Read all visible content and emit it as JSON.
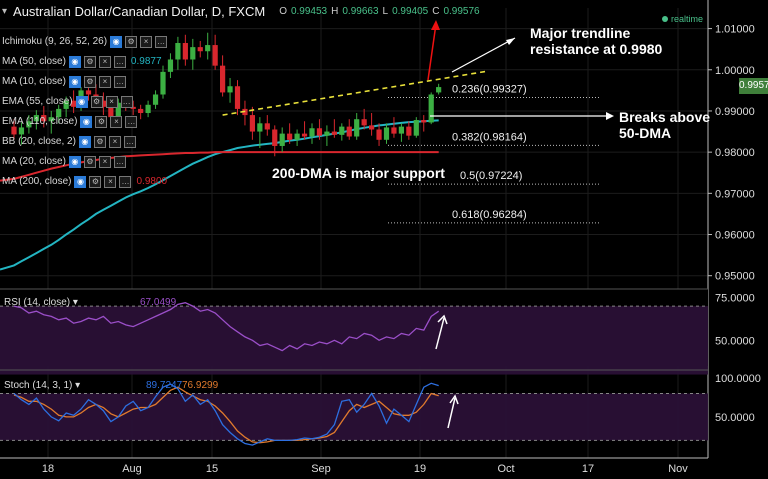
{
  "header": {
    "title": "Australian Dollar/Canadian Dollar, D, FXCM",
    "ohlc": {
      "o_label": "O",
      "o": "0.99453",
      "h_label": "H",
      "h": "0.99663",
      "l_label": "L",
      "l": "0.99405",
      "c_label": "C",
      "c": "0.99576"
    }
  },
  "realtime_label": "realtime",
  "indicators": [
    {
      "label": "Ichimoku (9, 26, 52, 26)",
      "value": ""
    },
    {
      "label": "MA (50, close)",
      "value": "0.9877"
    },
    {
      "label": "MA (10, close)",
      "value": ""
    },
    {
      "label": "EMA (55, close)",
      "value": ""
    },
    {
      "label": "EMA (110, close)",
      "value": ""
    },
    {
      "label": "BB (20, close, 2)",
      "value": ""
    },
    {
      "label": "MA (20, close)",
      "value": ""
    },
    {
      "label": "MA (200, close)",
      "value": "0.9800"
    }
  ],
  "current_price": "0.99576",
  "colors": {
    "up": "#3cb043",
    "down": "#d9272e",
    "ema": "#23b5c2",
    "dma200": "#d9272e",
    "trendline": "#e8e03a",
    "rsi": "#9b4fc9",
    "stoch_k": "#2d6fe0",
    "stoch_d": "#e07a2d",
    "panel": "#2a1036",
    "annot_red": "#e11",
    "badge": "#3f7f3a"
  },
  "annotations": {
    "trendline_note": "Major trendline resistance at 0.9980",
    "breaks_note": "Breaks above 50-DMA",
    "support_note": "200-DMA is major support"
  },
  "chart_data": [
    {
      "type": "candlestick",
      "title": "Australian Dollar/Canadian Dollar, D, FXCM",
      "ylim": [
        0.9475,
        1.015
      ],
      "yticks": [
        "1.01000",
        "1.00000",
        "0.99000",
        "0.98000",
        "0.97000",
        "0.96000",
        "0.95000"
      ],
      "x_labels": [
        "18",
        "Aug",
        "15",
        "Sep",
        "19",
        "Oct",
        "17",
        "Nov"
      ],
      "candles": [
        {
          "o": 0.9862,
          "h": 0.988,
          "l": 0.983,
          "c": 0.9843
        },
        {
          "o": 0.9843,
          "h": 0.9872,
          "l": 0.9818,
          "c": 0.986
        },
        {
          "o": 0.986,
          "h": 0.989,
          "l": 0.9845,
          "c": 0.9875
        },
        {
          "o": 0.9875,
          "h": 0.9902,
          "l": 0.9855,
          "c": 0.989
        },
        {
          "o": 0.989,
          "h": 0.9912,
          "l": 0.986,
          "c": 0.9875
        },
        {
          "o": 0.9875,
          "h": 0.99,
          "l": 0.9845,
          "c": 0.9885
        },
        {
          "o": 0.9885,
          "h": 0.9915,
          "l": 0.987,
          "c": 0.9905
        },
        {
          "o": 0.9905,
          "h": 0.9935,
          "l": 0.9885,
          "c": 0.9925
        },
        {
          "o": 0.9925,
          "h": 0.995,
          "l": 0.9895,
          "c": 0.991
        },
        {
          "o": 0.991,
          "h": 0.9958,
          "l": 0.99,
          "c": 0.995
        },
        {
          "o": 0.995,
          "h": 0.9975,
          "l": 0.9925,
          "c": 0.994
        },
        {
          "o": 0.994,
          "h": 0.9965,
          "l": 0.9915,
          "c": 0.9925
        },
        {
          "o": 0.9925,
          "h": 0.9945,
          "l": 0.989,
          "c": 0.991
        },
        {
          "o": 0.991,
          "h": 0.993,
          "l": 0.986,
          "c": 0.9885
        },
        {
          "o": 0.9885,
          "h": 0.993,
          "l": 0.988,
          "c": 0.992
        },
        {
          "o": 0.992,
          "h": 0.9935,
          "l": 0.99,
          "c": 0.991
        },
        {
          "o": 0.991,
          "h": 0.9925,
          "l": 0.989,
          "c": 0.9905
        },
        {
          "o": 0.9905,
          "h": 0.9915,
          "l": 0.988,
          "c": 0.9895
        },
        {
          "o": 0.9895,
          "h": 0.9925,
          "l": 0.9885,
          "c": 0.9915
        },
        {
          "o": 0.9915,
          "h": 0.995,
          "l": 0.9905,
          "c": 0.994
        },
        {
          "o": 0.994,
          "h": 1.001,
          "l": 0.993,
          "c": 0.9995
        },
        {
          "o": 0.9995,
          "h": 1.004,
          "l": 0.998,
          "c": 1.0025
        },
        {
          "o": 1.0025,
          "h": 1.008,
          "l": 1.0,
          "c": 1.0065
        },
        {
          "o": 1.0065,
          "h": 1.0085,
          "l": 1.001,
          "c": 1.0025
        },
        {
          "o": 1.0025,
          "h": 1.0075,
          "l": 1.0,
          "c": 1.0055
        },
        {
          "o": 1.0055,
          "h": 1.007,
          "l": 1.003,
          "c": 1.0045
        },
        {
          "o": 1.0045,
          "h": 1.009,
          "l": 1.0025,
          "c": 1.006
        },
        {
          "o": 1.006,
          "h": 1.0085,
          "l": 1.0,
          "c": 1.001
        },
        {
          "o": 1.001,
          "h": 1.0035,
          "l": 0.9935,
          "c": 0.9945
        },
        {
          "o": 0.9945,
          "h": 0.998,
          "l": 0.992,
          "c": 0.996
        },
        {
          "o": 0.996,
          "h": 0.9975,
          "l": 0.989,
          "c": 0.9905
        },
        {
          "o": 0.9905,
          "h": 0.9925,
          "l": 0.9865,
          "c": 0.989
        },
        {
          "o": 0.989,
          "h": 0.991,
          "l": 0.983,
          "c": 0.985
        },
        {
          "o": 0.985,
          "h": 0.9885,
          "l": 0.981,
          "c": 0.987
        },
        {
          "o": 0.987,
          "h": 0.989,
          "l": 0.984,
          "c": 0.9855
        },
        {
          "o": 0.9855,
          "h": 0.9865,
          "l": 0.979,
          "c": 0.9815
        },
        {
          "o": 0.9815,
          "h": 0.986,
          "l": 0.98,
          "c": 0.9845
        },
        {
          "o": 0.9845,
          "h": 0.987,
          "l": 0.982,
          "c": 0.983
        },
        {
          "o": 0.983,
          "h": 0.9855,
          "l": 0.9815,
          "c": 0.9845
        },
        {
          "o": 0.9845,
          "h": 0.9875,
          "l": 0.983,
          "c": 0.9838
        },
        {
          "o": 0.9838,
          "h": 0.987,
          "l": 0.982,
          "c": 0.9858
        },
        {
          "o": 0.9858,
          "h": 0.988,
          "l": 0.983,
          "c": 0.984
        },
        {
          "o": 0.984,
          "h": 0.9865,
          "l": 0.9815,
          "c": 0.985
        },
        {
          "o": 0.985,
          "h": 0.988,
          "l": 0.9835,
          "c": 0.9842
        },
        {
          "o": 0.9842,
          "h": 0.987,
          "l": 0.9828,
          "c": 0.9862
        },
        {
          "o": 0.9862,
          "h": 0.988,
          "l": 0.983,
          "c": 0.9838
        },
        {
          "o": 0.9838,
          "h": 0.9895,
          "l": 0.983,
          "c": 0.988
        },
        {
          "o": 0.988,
          "h": 0.9905,
          "l": 0.9855,
          "c": 0.9865
        },
        {
          "o": 0.9865,
          "h": 0.9895,
          "l": 0.984,
          "c": 0.9855
        },
        {
          "o": 0.9855,
          "h": 0.987,
          "l": 0.9815,
          "c": 0.983
        },
        {
          "o": 0.983,
          "h": 0.987,
          "l": 0.982,
          "c": 0.986
        },
        {
          "o": 0.986,
          "h": 0.9885,
          "l": 0.9835,
          "c": 0.9845
        },
        {
          "o": 0.9845,
          "h": 0.987,
          "l": 0.9825,
          "c": 0.9862
        },
        {
          "o": 0.9862,
          "h": 0.9875,
          "l": 0.983,
          "c": 0.984
        },
        {
          "o": 0.984,
          "h": 0.9885,
          "l": 0.9835,
          "c": 0.9878
        },
        {
          "o": 0.9878,
          "h": 0.989,
          "l": 0.985,
          "c": 0.9872
        },
        {
          "o": 0.9872,
          "h": 0.9945,
          "l": 0.9868,
          "c": 0.994
        },
        {
          "o": 0.9945,
          "h": 0.9966,
          "l": 0.994,
          "c": 0.9958
        }
      ],
      "ema_55": [
        0.9525,
        0.9535,
        0.9545,
        0.9555,
        0.9565,
        0.9575,
        0.9587,
        0.96,
        0.9612,
        0.9625,
        0.9637,
        0.965,
        0.966,
        0.967,
        0.968,
        0.969,
        0.9698,
        0.9705,
        0.9713,
        0.9722,
        0.9732,
        0.9742,
        0.9752,
        0.9762,
        0.9772,
        0.978,
        0.9788,
        0.9795,
        0.98,
        0.9805,
        0.981,
        0.9813,
        0.9816,
        0.9818,
        0.982,
        0.9822,
        0.9825,
        0.9828,
        0.983,
        0.9833,
        0.9836,
        0.9839,
        0.9842,
        0.9845,
        0.9848,
        0.9852,
        0.9856,
        0.9859,
        0.9862,
        0.9865,
        0.9867,
        0.9869,
        0.9871,
        0.9873,
        0.9874,
        0.9875,
        0.9876,
        0.9877
      ],
      "dma_200": [
        0.9735,
        0.974,
        0.9745,
        0.975,
        0.9755,
        0.976,
        0.9764,
        0.9768,
        0.9772,
        0.9775,
        0.9778,
        0.9781,
        0.9784,
        0.9786,
        0.9788,
        0.979,
        0.9791,
        0.9792,
        0.9793,
        0.9794,
        0.9795,
        0.9796,
        0.9797,
        0.9798,
        0.9798,
        0.9799,
        0.9799,
        0.98,
        0.98,
        0.98,
        0.98,
        0.98,
        0.98,
        0.98,
        0.98,
        0.98,
        0.98,
        0.98,
        0.98,
        0.98,
        0.98,
        0.98,
        0.98,
        0.98,
        0.98,
        0.98,
        0.98,
        0.98,
        0.98,
        0.98,
        0.98,
        0.98,
        0.98,
        0.98,
        0.98,
        0.98,
        0.98,
        0.98
      ],
      "fib_levels": [
        {
          "ratio": "0.236",
          "price": 0.99327,
          "label": "0.236(0.99327)"
        },
        {
          "ratio": "0.382",
          "price": 0.98164,
          "label": "0.382(0.98164)"
        },
        {
          "ratio": "0.5",
          "price": 0.97224,
          "label": "0.5(0.97224)"
        },
        {
          "ratio": "0.618",
          "price": 0.96284,
          "label": "0.618(0.96284)"
        }
      ],
      "trendline": {
        "from_index": 28,
        "from_price": 0.989,
        "to_index": 58,
        "to_price": 0.998
      }
    },
    {
      "type": "line",
      "title": "RSI (14, close)",
      "value_label": "67.0499",
      "ylim": [
        35,
        80
      ],
      "yticks": [
        "75.0000",
        "50.0000"
      ],
      "overbought": 70,
      "values": [
        70,
        69,
        66,
        67,
        65,
        64,
        62,
        63,
        60,
        61,
        63,
        62,
        64,
        60,
        61,
        59,
        58,
        60,
        62,
        64,
        66,
        68,
        71,
        72,
        70,
        67,
        68,
        66,
        62,
        58,
        55,
        52,
        50,
        47,
        48,
        46,
        44,
        47,
        45,
        48,
        47,
        49,
        48,
        50,
        48,
        52,
        51,
        54,
        53,
        50,
        52,
        51,
        54,
        53,
        57,
        56,
        64,
        67
      ]
    },
    {
      "type": "line",
      "title": "Stoch (14, 3, 1)",
      "value_label_k": "89.7247",
      "value_label_d": "76.9299",
      "ylim": [
        0,
        110
      ],
      "yticks": [
        "100.0000",
        "50.0000"
      ],
      "upper_band": 80,
      "lower_band": 20,
      "k": [
        80,
        72,
        66,
        74,
        60,
        50,
        45,
        55,
        52,
        60,
        72,
        66,
        58,
        44,
        50,
        64,
        70,
        58,
        62,
        76,
        88,
        92,
        86,
        70,
        78,
        66,
        72,
        58,
        40,
        30,
        22,
        16,
        14,
        18,
        22,
        20,
        20,
        20,
        21,
        23,
        22,
        24,
        28,
        40,
        70,
        72,
        56,
        66,
        80,
        64,
        42,
        60,
        52,
        44,
        66,
        88,
        93,
        90
      ],
      "d": [
        78,
        75,
        70,
        70,
        66,
        60,
        52,
        50,
        50,
        55,
        62,
        66,
        62,
        54,
        50,
        55,
        60,
        62,
        62,
        66,
        75,
        84,
        88,
        82,
        77,
        72,
        70,
        64,
        55,
        44,
        32,
        24,
        18,
        17,
        18,
        20,
        20,
        20,
        20,
        21,
        22,
        23,
        25,
        30,
        44,
        58,
        66,
        62,
        66,
        70,
        62,
        54,
        52,
        52,
        56,
        66,
        80,
        77
      ]
    }
  ]
}
